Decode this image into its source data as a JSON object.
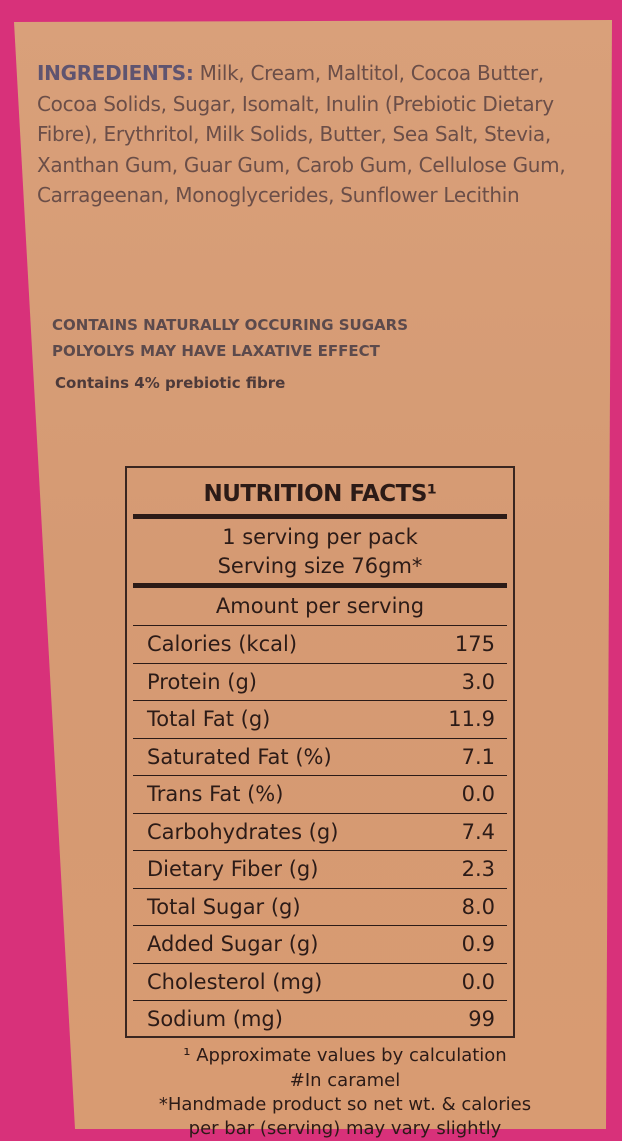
{
  "ingredients": {
    "label": "INGREDIENTS:",
    "text": "Milk, Cream, Maltitol, Cocoa Butter, Cocoa Solids, Sugar, Isomalt, Inulin (Prebiotic Dietary Fibre), Erythritol, Milk Solids, Butter, Sea Salt, Stevia, Xanthan Gum, Guar Gum, Carob Gum, Cellulose Gum, Carrageenan, Monoglycerides, Sunflower Lecithin"
  },
  "warnings": [
    "CONTAINS NATURALLY OCCURING SUGARS",
    "POLYOLYS MAY HAVE LAXATIVE EFFECT"
  ],
  "fibre_note": "Contains 4% prebiotic fibre",
  "nutrition": {
    "title": "NUTRITION FACTS¹",
    "servings": "1 serving per pack",
    "serving_size": "Serving size 76gm*",
    "amount_header": "Amount per serving",
    "rows": [
      {
        "name": "Calories (kcal)",
        "value": "175"
      },
      {
        "name": "Protein (g)",
        "value": "3.0"
      },
      {
        "name": "Total Fat (g)",
        "value": "11.9"
      },
      {
        "name": "Saturated Fat (%)",
        "value": "7.1"
      },
      {
        "name": "Trans Fat (%)",
        "value": "0.0"
      },
      {
        "name": "Carbohydrates (g)",
        "value": "7.4"
      },
      {
        "name": "Dietary Fiber (g)",
        "value": "2.3"
      },
      {
        "name": "Total Sugar (g)",
        "value": "8.0"
      },
      {
        "name": "Added Sugar (g)",
        "value": "0.9"
      },
      {
        "name": "Cholesterol (mg)",
        "value": "0.0"
      },
      {
        "name": "Sodium (mg)",
        "value": "99"
      }
    ]
  },
  "footnotes": [
    "¹ Approximate values by calculation",
    "#In caramel",
    "*Handmade product so net wt. & calories",
    "per bar (serving) may vary slightly"
  ],
  "colors": {
    "packaging_pink": "#d8317a",
    "label_tan": "#d9a07a"
  }
}
